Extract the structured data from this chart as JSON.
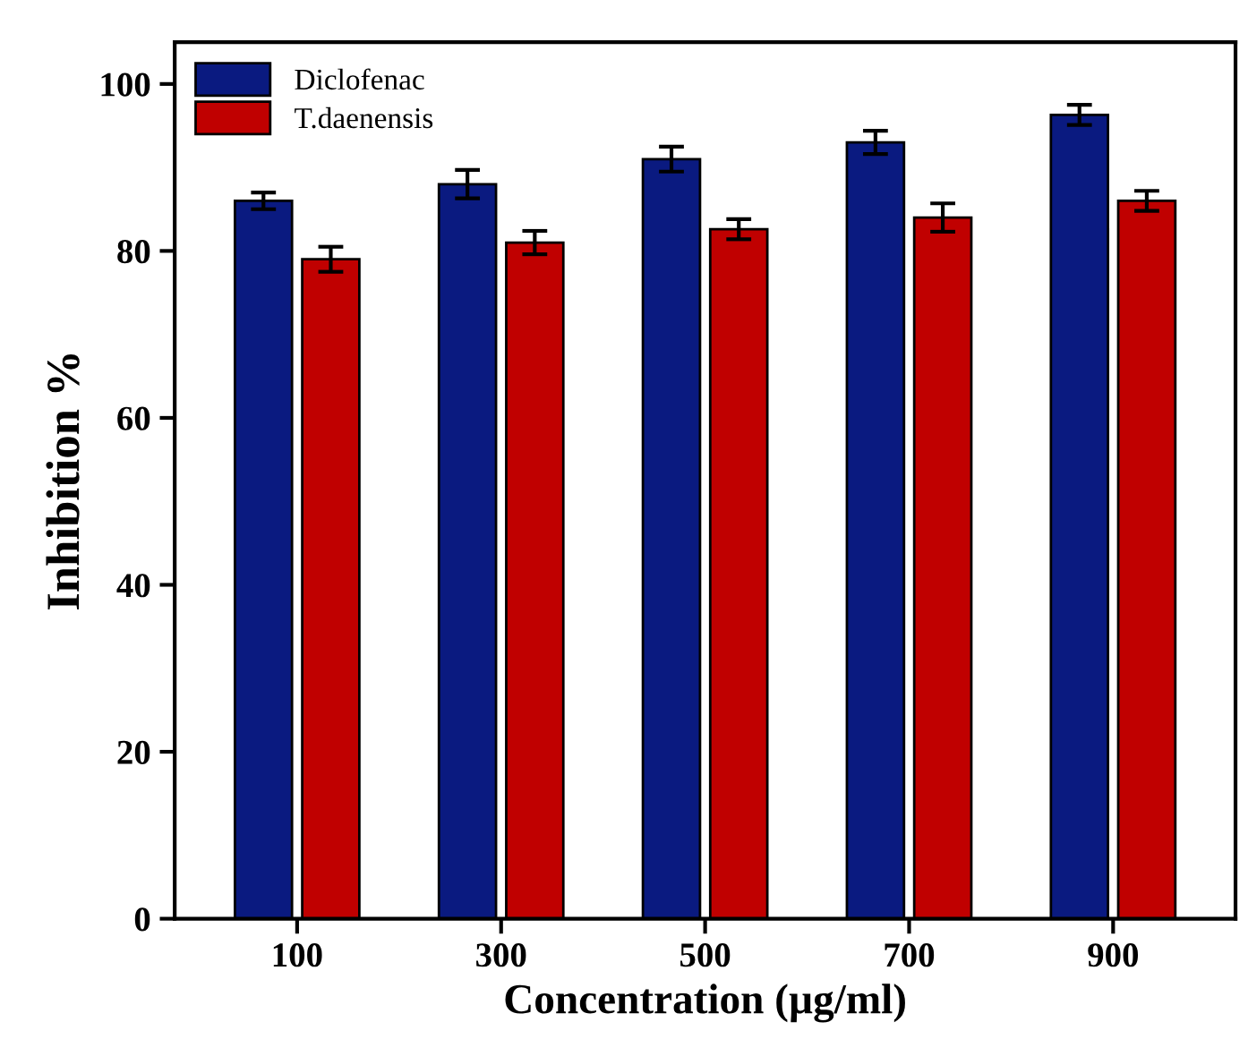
{
  "chart_data": {
    "type": "bar",
    "xlabel": "Concentration (µg/ml)",
    "ylabel": "Inhibition %",
    "categories": [
      "100",
      "300",
      "500",
      "700",
      "900"
    ],
    "series": [
      {
        "name": "Diclofenac",
        "color": "#0a1a80",
        "values": [
          86,
          88,
          91,
          93,
          96.3
        ],
        "errors": [
          1,
          1.7,
          1.5,
          1.4,
          1.2
        ]
      },
      {
        "name": "T.daenensis",
        "color": "#c00000",
        "values": [
          79,
          81,
          82.6,
          84,
          86
        ],
        "errors": [
          1.5,
          1.4,
          1.2,
          1.7,
          1.2
        ]
      }
    ],
    "ylim": [
      0,
      105
    ],
    "yticks": [
      0,
      20,
      40,
      60,
      80,
      100
    ],
    "legend": "top left",
    "grid": false
  }
}
